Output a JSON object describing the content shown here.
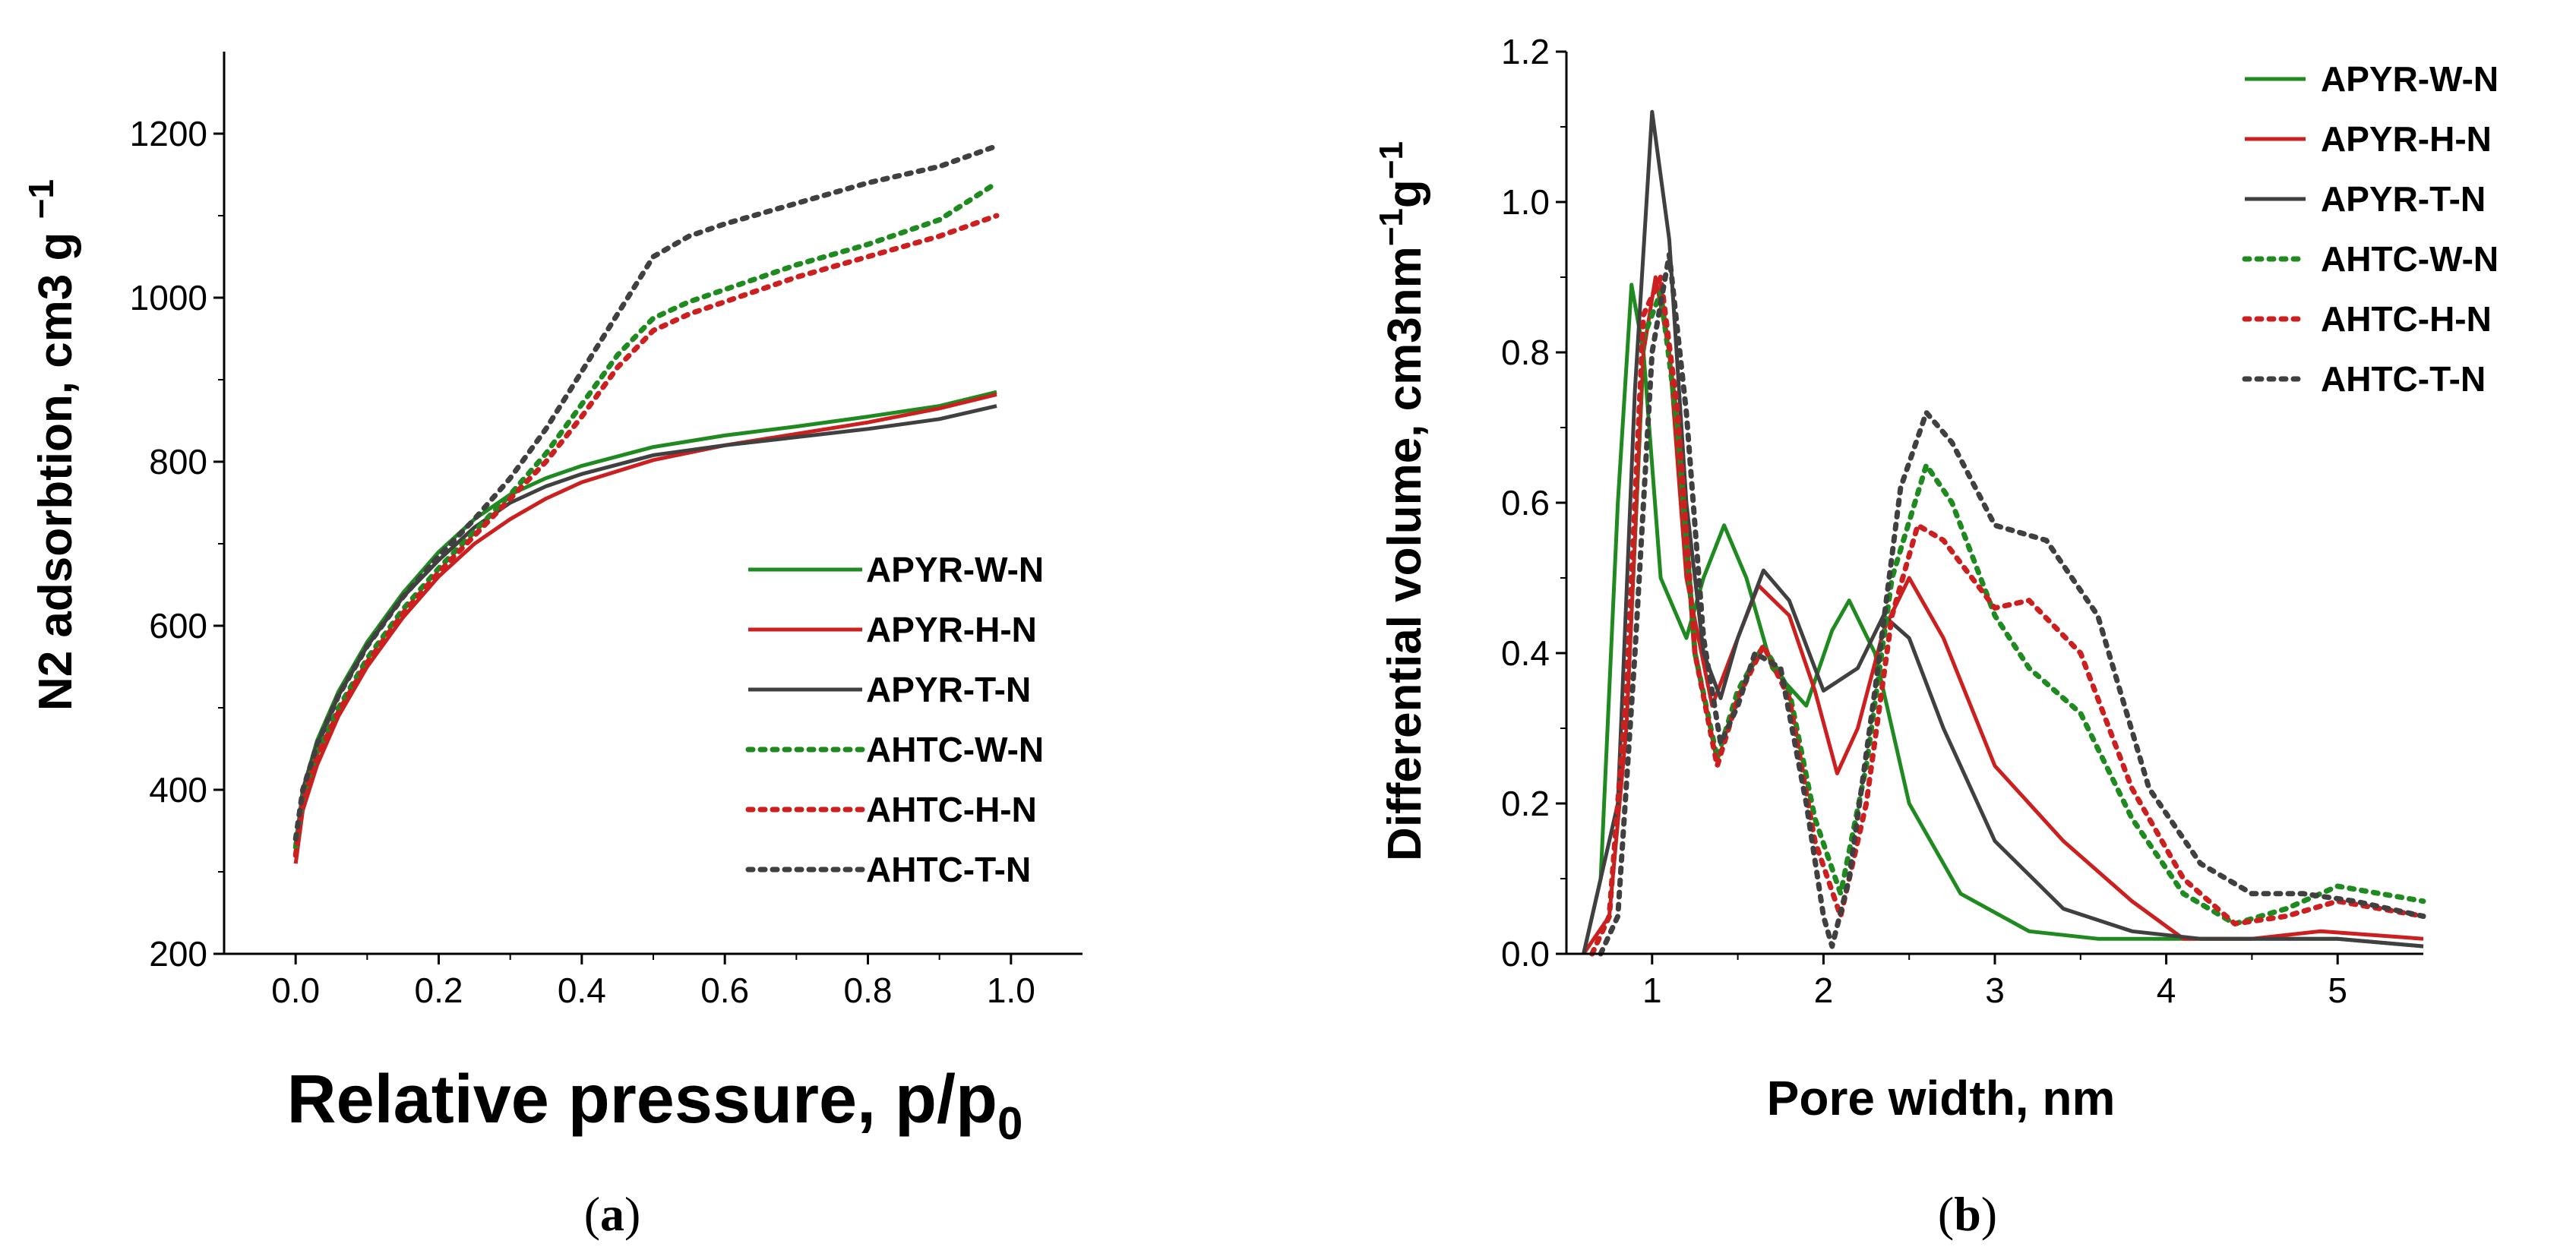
{
  "colors": {
    "green": "#1f8a1f",
    "red": "#cc1f1f",
    "gray": "#404040"
  },
  "chart_data": [
    {
      "id": "a",
      "type": "line",
      "caption_open": "(",
      "caption_label": "a",
      "caption_close": ")",
      "xlabel_main": "Relative pressure, p/p",
      "xlabel_sub": "0",
      "ylabel_main": "N2 adsorbtion, cm3 g ",
      "ylabel_sup": "−1",
      "xlim": [
        -0.1,
        1.1
      ],
      "ylim": [
        200,
        1300
      ],
      "xticks": [
        0.0,
        0.2,
        0.4,
        0.6,
        0.8,
        1.0
      ],
      "xtick_labels": [
        "0.0",
        "0.2",
        "0.4",
        "0.6",
        "0.8",
        "1.0"
      ],
      "yticks": [
        200,
        400,
        600,
        800,
        1000,
        1200
      ],
      "ytick_labels": [
        "200",
        "400",
        "600",
        "800",
        "1000",
        "1200"
      ],
      "legend_position": "lower-right",
      "series": [
        {
          "name": "APYR-W-N",
          "color": "green",
          "style": "solid",
          "x": [
            0,
            0.01,
            0.03,
            0.06,
            0.1,
            0.15,
            0.2,
            0.25,
            0.3,
            0.35,
            0.4,
            0.5,
            0.6,
            0.7,
            0.8,
            0.9,
            0.98
          ],
          "y": [
            320,
            400,
            460,
            520,
            580,
            640,
            690,
            730,
            760,
            780,
            795,
            818,
            832,
            843,
            855,
            868,
            885
          ]
        },
        {
          "name": "APYR-H-N",
          "color": "red",
          "style": "solid",
          "x": [
            0,
            0.01,
            0.03,
            0.06,
            0.1,
            0.15,
            0.2,
            0.25,
            0.3,
            0.35,
            0.4,
            0.5,
            0.6,
            0.7,
            0.8,
            0.9,
            0.98
          ],
          "y": [
            310,
            375,
            430,
            490,
            550,
            610,
            660,
            700,
            730,
            755,
            775,
            802,
            820,
            834,
            848,
            865,
            882
          ]
        },
        {
          "name": "APYR-T-N",
          "color": "gray",
          "style": "solid",
          "x": [
            0,
            0.01,
            0.03,
            0.06,
            0.1,
            0.15,
            0.2,
            0.25,
            0.3,
            0.35,
            0.4,
            0.5,
            0.6,
            0.7,
            0.8,
            0.9,
            0.98
          ],
          "y": [
            330,
            400,
            455,
            515,
            575,
            635,
            680,
            720,
            750,
            770,
            785,
            808,
            820,
            830,
            840,
            852,
            868
          ]
        },
        {
          "name": "AHTC-W-N",
          "color": "green",
          "style": "dotted",
          "x": [
            0,
            0.01,
            0.03,
            0.06,
            0.1,
            0.15,
            0.2,
            0.25,
            0.3,
            0.35,
            0.4,
            0.45,
            0.5,
            0.55,
            0.6,
            0.7,
            0.8,
            0.9,
            0.98
          ],
          "y": [
            330,
            390,
            445,
            500,
            560,
            620,
            670,
            715,
            760,
            810,
            870,
            930,
            975,
            995,
            1010,
            1040,
            1065,
            1095,
            1140
          ]
        },
        {
          "name": "AHTC-H-N",
          "color": "red",
          "style": "dotted",
          "x": [
            0,
            0.01,
            0.03,
            0.06,
            0.1,
            0.15,
            0.2,
            0.25,
            0.3,
            0.35,
            0.4,
            0.45,
            0.5,
            0.55,
            0.6,
            0.7,
            0.8,
            0.9,
            0.98
          ],
          "y": [
            320,
            385,
            440,
            495,
            555,
            615,
            665,
            710,
            755,
            800,
            855,
            915,
            960,
            980,
            995,
            1025,
            1050,
            1075,
            1100
          ]
        },
        {
          "name": "AHTC-T-N",
          "color": "gray",
          "style": "dotted",
          "x": [
            0,
            0.01,
            0.03,
            0.06,
            0.1,
            0.15,
            0.2,
            0.25,
            0.3,
            0.35,
            0.4,
            0.45,
            0.5,
            0.55,
            0.6,
            0.7,
            0.8,
            0.9,
            0.98
          ],
          "y": [
            340,
            400,
            455,
            515,
            575,
            635,
            685,
            730,
            780,
            840,
            910,
            980,
            1050,
            1075,
            1090,
            1115,
            1140,
            1160,
            1185
          ]
        }
      ]
    },
    {
      "id": "b",
      "type": "line",
      "caption_open": "(",
      "caption_label": "b",
      "caption_close": ")",
      "xlabel_main": "Pore width, nm",
      "ylabel_main": "Differential volume, cm3nm",
      "ylabel_sup1": "−1",
      "ylabel_mid": "g",
      "ylabel_sup2": "−1",
      "xlim": [
        0.5,
        5.5
      ],
      "ylim": [
        0.0,
        1.2
      ],
      "xticks": [
        1,
        2,
        3,
        4,
        5
      ],
      "xtick_labels": [
        "1",
        "2",
        "3",
        "4",
        "5"
      ],
      "yticks": [
        0.0,
        0.2,
        0.4,
        0.6,
        0.8,
        1.0,
        1.2
      ],
      "ytick_labels": [
        "0.0",
        "0.2",
        "0.4",
        "0.6",
        "0.8",
        "1.0",
        "1.2"
      ],
      "legend_position": "top-right",
      "series": [
        {
          "name": "APYR-W-N",
          "color": "green",
          "style": "solid",
          "x": [
            0.6,
            0.7,
            0.8,
            0.88,
            0.95,
            1.05,
            1.2,
            1.3,
            1.42,
            1.55,
            1.7,
            1.9,
            2.05,
            2.15,
            2.3,
            2.5,
            2.8,
            3.2,
            3.6,
            4.0,
            4.5,
            5.0,
            5.5
          ],
          "y": [
            0.0,
            0.1,
            0.6,
            0.89,
            0.8,
            0.5,
            0.42,
            0.5,
            0.57,
            0.5,
            0.38,
            0.33,
            0.43,
            0.47,
            0.4,
            0.2,
            0.08,
            0.03,
            0.02,
            0.02,
            0.02,
            0.02,
            0.01
          ]
        },
        {
          "name": "APYR-H-N",
          "color": "red",
          "style": "solid",
          "x": [
            0.6,
            0.75,
            0.85,
            0.95,
            1.02,
            1.1,
            1.2,
            1.35,
            1.5,
            1.62,
            1.8,
            1.95,
            2.08,
            2.2,
            2.35,
            2.5,
            2.7,
            3.0,
            3.4,
            3.8,
            4.1,
            4.5,
            4.9,
            5.5
          ],
          "y": [
            0.0,
            0.05,
            0.3,
            0.8,
            0.9,
            0.8,
            0.5,
            0.33,
            0.42,
            0.49,
            0.45,
            0.35,
            0.24,
            0.3,
            0.43,
            0.5,
            0.42,
            0.25,
            0.15,
            0.07,
            0.02,
            0.02,
            0.03,
            0.02
          ]
        },
        {
          "name": "APYR-T-N",
          "color": "gray",
          "style": "solid",
          "x": [
            0.6,
            0.8,
            0.9,
            1.0,
            1.1,
            1.2,
            1.3,
            1.4,
            1.5,
            1.65,
            1.8,
            2.0,
            2.2,
            2.35,
            2.5,
            2.7,
            3.0,
            3.4,
            3.8,
            4.2,
            4.6,
            5.0,
            5.5
          ],
          "y": [
            0.0,
            0.2,
            0.75,
            1.12,
            0.95,
            0.6,
            0.4,
            0.34,
            0.42,
            0.51,
            0.47,
            0.35,
            0.38,
            0.45,
            0.42,
            0.3,
            0.15,
            0.06,
            0.03,
            0.02,
            0.02,
            0.02,
            0.01
          ]
        },
        {
          "name": "AHTC-W-N",
          "color": "green",
          "style": "dotted",
          "x": [
            0.65,
            0.75,
            0.85,
            0.95,
            1.05,
            1.15,
            1.25,
            1.38,
            1.5,
            1.65,
            1.8,
            1.95,
            2.1,
            2.25,
            2.4,
            2.6,
            2.75,
            3.0,
            3.2,
            3.5,
            3.8,
            4.1,
            4.4,
            4.7,
            5.0,
            5.5
          ],
          "y": [
            0.0,
            0.05,
            0.35,
            0.82,
            0.88,
            0.7,
            0.4,
            0.26,
            0.35,
            0.41,
            0.35,
            0.18,
            0.08,
            0.25,
            0.5,
            0.65,
            0.6,
            0.45,
            0.38,
            0.32,
            0.18,
            0.08,
            0.04,
            0.06,
            0.09,
            0.07
          ]
        },
        {
          "name": "AHTC-H-N",
          "color": "red",
          "style": "dotted",
          "x": [
            0.65,
            0.75,
            0.85,
            0.95,
            1.05,
            1.15,
            1.25,
            1.38,
            1.5,
            1.65,
            1.8,
            1.95,
            2.1,
            2.25,
            2.4,
            2.55,
            2.7,
            3.0,
            3.2,
            3.5,
            3.8,
            4.1,
            4.4,
            4.7,
            5.0,
            5.5
          ],
          "y": [
            0.0,
            0.05,
            0.35,
            0.85,
            0.9,
            0.72,
            0.4,
            0.25,
            0.34,
            0.41,
            0.34,
            0.15,
            0.05,
            0.2,
            0.45,
            0.57,
            0.55,
            0.46,
            0.47,
            0.4,
            0.22,
            0.1,
            0.04,
            0.05,
            0.07,
            0.05
          ]
        },
        {
          "name": "AHTC-T-N",
          "color": "gray",
          "style": "dotted",
          "x": [
            0.7,
            0.8,
            0.9,
            1.0,
            1.1,
            1.2,
            1.3,
            1.4,
            1.5,
            1.6,
            1.75,
            1.9,
            2.0,
            2.05,
            2.15,
            2.3,
            2.45,
            2.6,
            2.75,
            3.0,
            3.3,
            3.6,
            3.9,
            4.2,
            4.5,
            4.8,
            5.1,
            5.5
          ],
          "y": [
            0.0,
            0.05,
            0.4,
            0.8,
            0.93,
            0.72,
            0.42,
            0.28,
            0.33,
            0.4,
            0.38,
            0.2,
            0.05,
            0.01,
            0.1,
            0.35,
            0.62,
            0.72,
            0.68,
            0.57,
            0.55,
            0.45,
            0.22,
            0.12,
            0.08,
            0.08,
            0.07,
            0.05
          ]
        }
      ]
    }
  ]
}
